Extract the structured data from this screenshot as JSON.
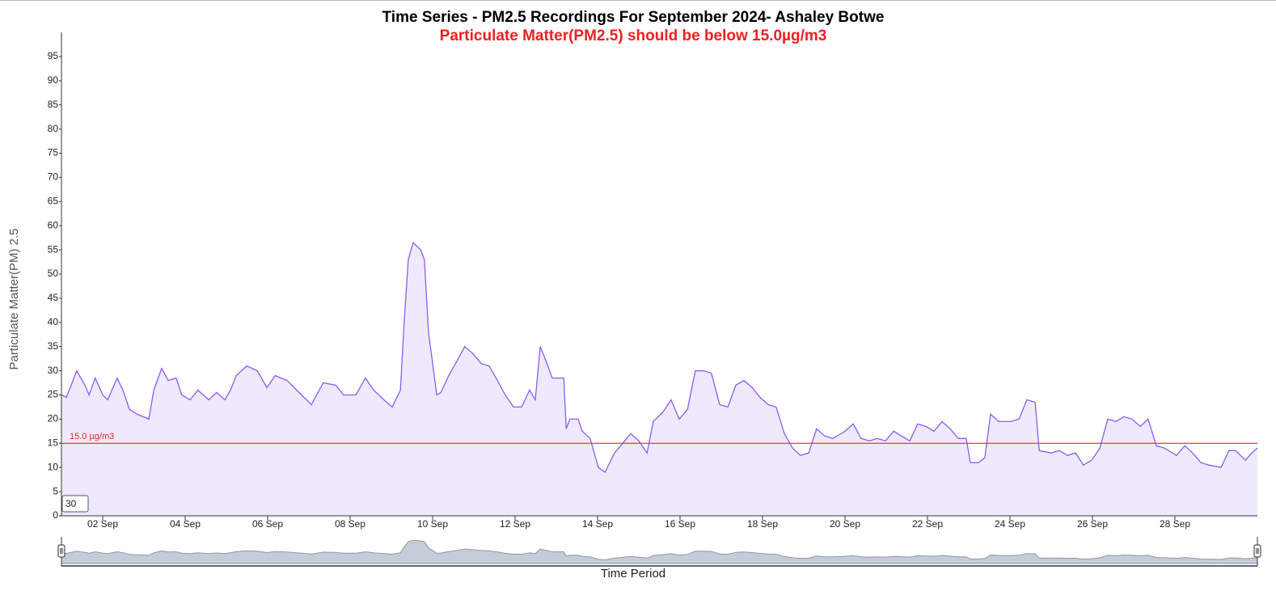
{
  "chart_data": {
    "type": "area",
    "title": "Time Series - PM2.5 Recordings For September 2024- Ashaley Botwe",
    "subtitle": "Particulate Matter(PM2.5) should be below 15.0µg/m3",
    "y_label": "Particulate Matter(PM) 2.5",
    "x_label": "Time Period",
    "threshold": 15,
    "threshold_label": "15.0 µg/m3",
    "threshold_color": "#e8262b",
    "input_value": "30",
    "color": "#8a5cf6",
    "fill": "#efe9fd",
    "xlim": [
      1,
      30
    ],
    "ylim": [
      0,
      100
    ],
    "yticks": [
      0,
      5,
      10,
      15,
      20,
      25,
      30,
      35,
      40,
      45,
      50,
      55,
      60,
      65,
      70,
      75,
      80,
      85,
      90,
      95
    ],
    "xticks": [
      {
        "value": 2,
        "label": "02 Sep"
      },
      {
        "value": 4,
        "label": "04 Sep"
      },
      {
        "value": 6,
        "label": "06 Sep"
      },
      {
        "value": 8,
        "label": "08 Sep"
      },
      {
        "value": 10,
        "label": "10 Sep"
      },
      {
        "value": 12,
        "label": "12 Sep"
      },
      {
        "value": 14,
        "label": "14 Sep"
      },
      {
        "value": 16,
        "label": "16 Sep"
      },
      {
        "value": 18,
        "label": "18 Sep"
      },
      {
        "value": 20,
        "label": "20 Sep"
      },
      {
        "value": 22,
        "label": "22 Sep"
      },
      {
        "value": 24,
        "label": "24 Sep"
      },
      {
        "value": 26,
        "label": "26 Sep"
      },
      {
        "value": 28,
        "label": "28 Sep"
      }
    ],
    "x": [
      1.0,
      1.12,
      1.37,
      1.57,
      1.67,
      1.82,
      2.0,
      2.12,
      2.35,
      2.49,
      2.65,
      2.84,
      3.12,
      3.24,
      3.43,
      3.59,
      3.78,
      3.92,
      4.12,
      4.31,
      4.57,
      4.76,
      4.96,
      5.1,
      5.24,
      5.49,
      5.75,
      5.98,
      6.18,
      6.47,
      6.76,
      7.06,
      7.35,
      7.65,
      7.84,
      8.14,
      8.37,
      8.57,
      8.82,
      9.02,
      9.22,
      9.31,
      9.41,
      9.53,
      9.71,
      9.8,
      9.9,
      10.1,
      10.2,
      10.39,
      10.59,
      10.78,
      10.98,
      11.18,
      11.37,
      11.57,
      11.76,
      11.96,
      12.16,
      12.35,
      12.49,
      12.61,
      12.75,
      12.9,
      13.18,
      13.24,
      13.33,
      13.53,
      13.63,
      13.82,
      14.02,
      14.18,
      14.41,
      14.61,
      14.8,
      15.0,
      15.2,
      15.35,
      15.59,
      15.78,
      15.98,
      16.18,
      16.37,
      16.57,
      16.76,
      16.96,
      17.16,
      17.35,
      17.55,
      17.75,
      17.94,
      18.14,
      18.33,
      18.53,
      18.73,
      18.92,
      19.12,
      19.31,
      19.51,
      19.71,
      20.0,
      20.2,
      20.39,
      20.59,
      20.78,
      20.98,
      21.18,
      21.37,
      21.57,
      21.76,
      21.96,
      22.16,
      22.35,
      22.55,
      22.75,
      22.94,
      23.04,
      23.24,
      23.39,
      23.53,
      23.73,
      24.02,
      24.22,
      24.41,
      24.61,
      24.71,
      25.0,
      25.2,
      25.39,
      25.59,
      25.78,
      25.98,
      26.18,
      26.37,
      26.57,
      26.76,
      26.96,
      27.16,
      27.35,
      27.55,
      27.75,
      28.04,
      28.24,
      28.43,
      28.63,
      28.82,
      29.12,
      29.31,
      29.47,
      29.71,
      29.86,
      30.0
    ],
    "values": [
      25,
      24.5,
      30,
      27,
      25,
      28.5,
      25,
      24,
      28.5,
      26,
      22,
      21,
      20,
      26,
      30.5,
      28,
      28.5,
      25,
      24,
      26,
      24,
      25.5,
      24,
      26,
      29,
      31,
      30,
      26.5,
      29,
      28,
      25.5,
      23,
      27.5,
      27,
      25,
      25,
      28.5,
      26,
      24,
      22.5,
      26,
      40,
      53,
      56.5,
      55,
      53,
      38,
      25,
      25.5,
      29,
      32,
      35,
      33.5,
      31.5,
      31,
      28,
      25,
      22.5,
      22.5,
      26,
      24,
      35,
      32,
      28.5,
      28.5,
      18,
      20,
      20,
      17.5,
      16,
      10,
      9,
      13,
      15,
      17,
      15.5,
      13,
      19.5,
      21.5,
      24,
      20,
      22,
      30,
      30,
      29.5,
      23,
      22.5,
      27,
      28,
      26.5,
      24.5,
      23,
      22.5,
      17,
      14,
      12.5,
      13,
      18,
      16.5,
      16,
      17.5,
      19,
      16,
      15.5,
      16,
      15.5,
      17.5,
      16.5,
      15.5,
      19,
      18.5,
      17.5,
      19.5,
      18,
      16,
      16,
      11,
      11,
      12,
      21,
      19.5,
      19.5,
      20,
      24,
      23.5,
      13.5,
      13,
      13.5,
      12.5,
      13,
      10.5,
      11.5,
      14,
      20,
      19.5,
      20.5,
      20,
      18.5,
      20,
      14.5,
      14,
      12.5,
      14.5,
      13,
      11,
      10.5,
      10,
      13.5,
      13.5,
      11.5,
      13,
      14
    ]
  }
}
